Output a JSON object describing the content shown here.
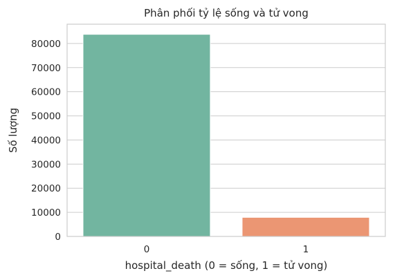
{
  "chart_data": {
    "type": "bar",
    "title": "Phân phối tỷ lệ sống và tử vong",
    "xlabel": "hospital_death (0 = sống, 1 = tử vong)",
    "ylabel": "Số lượng",
    "categories": [
      "0",
      "1"
    ],
    "values": [
      83798,
      7915
    ],
    "colors": [
      "#72b5a0",
      "#eb9673"
    ],
    "ylim": [
      0,
      88000
    ],
    "yticks": [
      0,
      10000,
      20000,
      30000,
      40000,
      50000,
      60000,
      70000,
      80000
    ],
    "grid": true,
    "legend": "none"
  }
}
